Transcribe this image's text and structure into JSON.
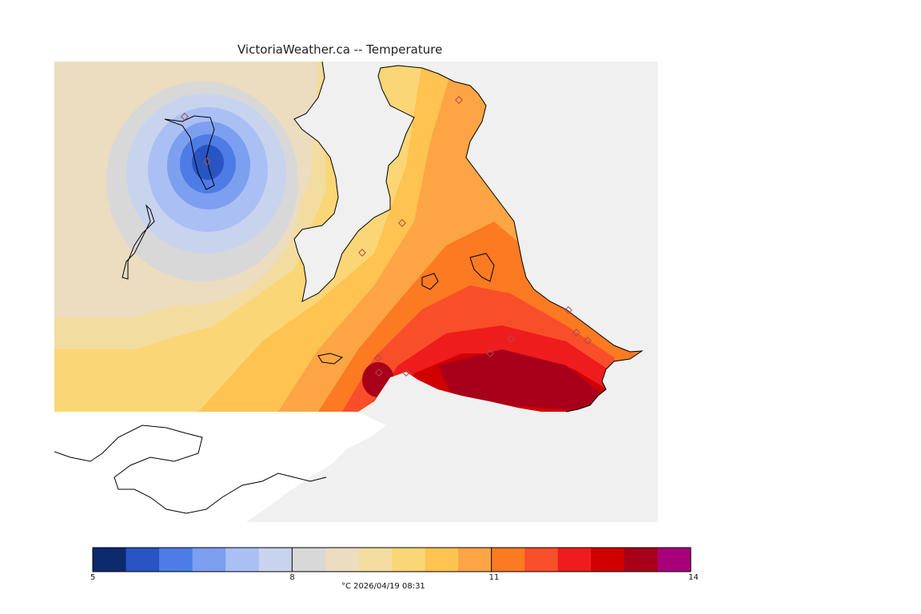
{
  "map": {
    "title": "VictoriaWeather.ca -- Temperature",
    "variable": "Temperature",
    "units": "°C",
    "timestamp": "2026/04/19 08:31",
    "colors": {
      "ocean": "#f0f0f0",
      "land_outline": "#000000",
      "station_marker": "#c87070"
    }
  },
  "legend": {
    "min": 5,
    "max": 14,
    "step": 0.5,
    "tick_labels": [
      "5",
      "8",
      "11",
      "14"
    ],
    "caption": "°C  2026/04/19 08:31",
    "colors": [
      "#0c2a6e",
      "#2855c3",
      "#4d7ce6",
      "#7d9ff0",
      "#aac0f5",
      "#c8d3ee",
      "#d8d8d8",
      "#ecdcc0",
      "#f3dca0",
      "#fbd676",
      "#fec350",
      "#fda545",
      "#fc7a22",
      "#f94e2a",
      "#ee1c1c",
      "#d00000",
      "#a8001a",
      "#a8007a"
    ]
  }
}
